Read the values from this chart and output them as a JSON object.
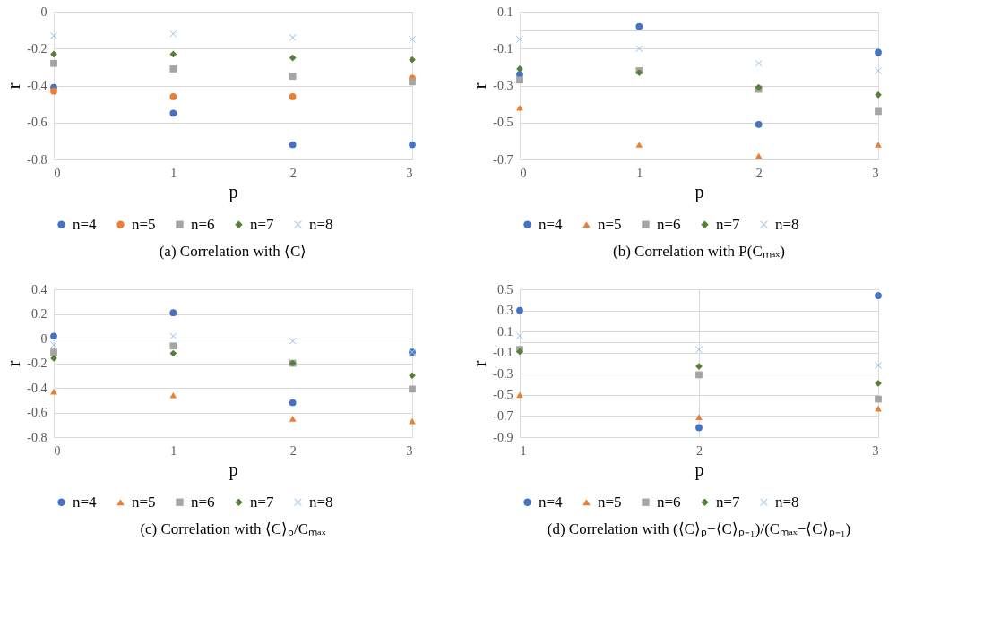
{
  "chart_data": [
    {
      "type": "scatter",
      "title": "(a) Correlation with ⟨C⟩",
      "xlabel": "p",
      "ylabel": "r",
      "x": [
        0,
        1,
        2,
        3
      ],
      "xlim": [
        0,
        3
      ],
      "xticks": [
        0,
        1,
        2,
        3
      ],
      "ylim": [
        -0.8,
        0
      ],
      "yticks": [
        0,
        -0.2,
        -0.4,
        -0.6,
        -0.8
      ],
      "grid": "y",
      "legend": "bottom",
      "series": [
        {
          "name": "n=4",
          "color": "#4472c4",
          "marker": "circle",
          "values": [
            -0.41,
            -0.55,
            -0.72,
            -0.72
          ]
        },
        {
          "name": "n=5",
          "color": "#ed7d31",
          "marker": "circle",
          "values": [
            -0.43,
            -0.46,
            -0.46,
            -0.36
          ]
        },
        {
          "name": "n=6",
          "color": "#a5a5a5",
          "marker": "square",
          "values": [
            -0.28,
            -0.31,
            -0.35,
            -0.38
          ]
        },
        {
          "name": "n=7",
          "color": "#548235",
          "marker": "diamond",
          "values": [
            -0.23,
            -0.23,
            -0.25,
            -0.26
          ]
        },
        {
          "name": "n=8",
          "color": "#9dc3e6",
          "marker": "cross",
          "values": [
            -0.13,
            -0.12,
            -0.14,
            -0.15
          ]
        }
      ]
    },
    {
      "type": "scatter",
      "title": "(b) Correlation with P(Cₘₐₓ)",
      "xlabel": "p",
      "ylabel": "r",
      "x": [
        0,
        1,
        2,
        3
      ],
      "xlim": [
        0,
        3
      ],
      "xticks": [
        0,
        1,
        2,
        3
      ],
      "ylim": [
        -0.7,
        0.1
      ],
      "yticks": [
        0.1,
        {
          "value": 0,
          "label": null
        },
        -0.1,
        -0.3,
        -0.5,
        -0.7
      ],
      "grid": "y",
      "legend": "bottom",
      "series": [
        {
          "name": "n=4",
          "color": "#4472c4",
          "marker": "circle",
          "values": [
            -0.24,
            0.02,
            -0.51,
            -0.12
          ]
        },
        {
          "name": "n=5",
          "color": "#ed7d31",
          "marker": "triangle",
          "values": [
            -0.42,
            -0.62,
            -0.68,
            -0.62
          ]
        },
        {
          "name": "n=6",
          "color": "#a5a5a5",
          "marker": "square",
          "values": [
            -0.27,
            -0.22,
            -0.32,
            -0.44
          ]
        },
        {
          "name": "n=7",
          "color": "#548235",
          "marker": "diamond",
          "values": [
            -0.21,
            -0.23,
            -0.31,
            -0.35
          ]
        },
        {
          "name": "n=8",
          "color": "#9dc3e6",
          "marker": "cross",
          "values": [
            -0.05,
            -0.1,
            -0.18,
            -0.22
          ]
        }
      ]
    },
    {
      "type": "scatter",
      "title": "(c) Correlation with ⟨C⟩ₚ/Cₘₐₓ",
      "xlabel": "p",
      "ylabel": "r",
      "x": [
        0,
        1,
        2,
        3
      ],
      "xlim": [
        0,
        3
      ],
      "xticks": [
        0,
        1,
        2,
        3
      ],
      "ylim": [
        -0.8,
        0.4
      ],
      "yticks": [
        0.4,
        0.2,
        0,
        -0.2,
        -0.4,
        -0.6,
        -0.8
      ],
      "grid": "y",
      "legend": "bottom",
      "series": [
        {
          "name": "n=4",
          "color": "#4472c4",
          "marker": "circle",
          "values": [
            0.02,
            0.21,
            -0.52,
            -0.11
          ]
        },
        {
          "name": "n=5",
          "color": "#ed7d31",
          "marker": "triangle",
          "values": [
            -0.43,
            -0.46,
            -0.65,
            -0.67
          ]
        },
        {
          "name": "n=6",
          "color": "#a5a5a5",
          "marker": "square",
          "values": [
            -0.11,
            -0.06,
            -0.2,
            -0.41
          ]
        },
        {
          "name": "n=7",
          "color": "#548235",
          "marker": "diamond",
          "values": [
            -0.16,
            -0.12,
            -0.2,
            -0.3
          ]
        },
        {
          "name": "n=8",
          "color": "#9dc3e6",
          "marker": "cross",
          "values": [
            -0.05,
            0.02,
            -0.02,
            -0.11
          ]
        }
      ]
    },
    {
      "type": "scatter",
      "title": "(d) Correlation with (⟨C⟩ₚ−⟨C⟩ₚ₋₁)/(Cₘₐₓ−⟨C⟩ₚ₋₁)",
      "xlabel": "p",
      "ylabel": "r",
      "x": [
        1,
        2,
        3
      ],
      "xlim": [
        1,
        3
      ],
      "xticks": [
        1,
        2,
        3
      ],
      "ylim": [
        -0.9,
        0.5
      ],
      "yticks": [
        0.5,
        0.3,
        0.1,
        {
          "value": 0,
          "label": null
        },
        -0.1,
        -0.3,
        -0.5,
        -0.7,
        -0.9
      ],
      "grid": true,
      "legend": "bottom",
      "series": [
        {
          "name": "n=4",
          "color": "#4472c4",
          "marker": "circle",
          "values": [
            0.3,
            -0.81,
            0.44
          ]
        },
        {
          "name": "n=5",
          "color": "#ed7d31",
          "marker": "triangle",
          "values": [
            -0.5,
            -0.71,
            -0.63
          ]
        },
        {
          "name": "n=6",
          "color": "#a5a5a5",
          "marker": "square",
          "values": [
            -0.07,
            -0.31,
            -0.54
          ]
        },
        {
          "name": "n=7",
          "color": "#548235",
          "marker": "diamond",
          "values": [
            -0.09,
            -0.23,
            -0.39
          ]
        },
        {
          "name": "n=8",
          "color": "#9dc3e6",
          "marker": "cross",
          "values": [
            0.06,
            -0.07,
            -0.22
          ]
        }
      ]
    }
  ]
}
